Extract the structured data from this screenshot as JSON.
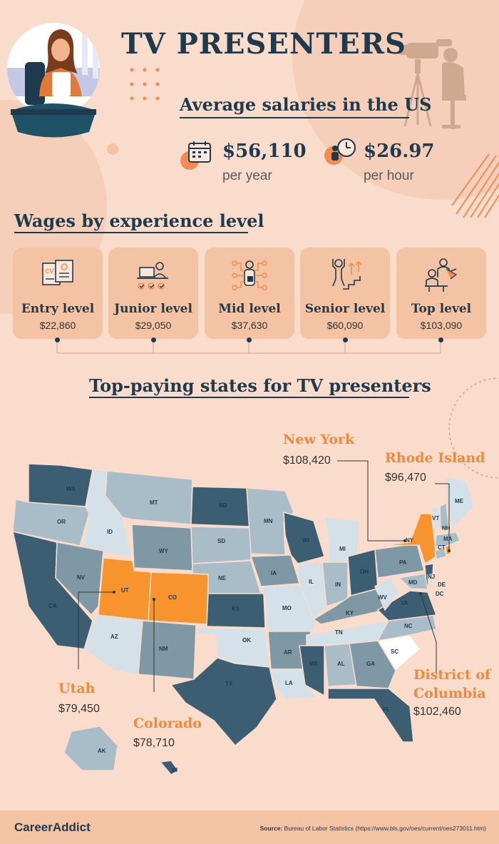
{
  "header": {
    "title": "TV PRESENTERS",
    "subtitle": "Average salaries in the US",
    "annual_salary": "$56,110",
    "annual_label": "per year",
    "hourly_salary": "$26.97",
    "hourly_label": "per hour"
  },
  "experience": {
    "heading": "Wages by experience level",
    "levels": [
      {
        "label": "Entry level",
        "salary": "$22,860",
        "icon": "cv-resume-icon"
      },
      {
        "label": "Junior level",
        "salary": "$29,050",
        "icon": "laptop-checklist-icon"
      },
      {
        "label": "Mid level",
        "salary": "$37,630",
        "icon": "network-person-icon"
      },
      {
        "label": "Senior level",
        "salary": "$60,090",
        "icon": "climbing-stairs-icon"
      },
      {
        "label": "Top level",
        "salary": "$103,090",
        "icon": "mentor-icon"
      }
    ]
  },
  "states": {
    "heading": "Top-paying states for TV presenters",
    "highlights": [
      {
        "name": "New York",
        "salary": "$108,420"
      },
      {
        "name": "Rhode Island",
        "salary": "$96,470"
      },
      {
        "name": "District of",
        "name2": "Columbia",
        "salary": "$102,460"
      },
      {
        "name": "Utah",
        "salary": "$79,450"
      },
      {
        "name": "Colorado",
        "salary": "$78,710"
      }
    ],
    "abbreviations": [
      "WA",
      "OR",
      "CA",
      "ID",
      "NV",
      "MT",
      "WY",
      "UT",
      "AZ",
      "CO",
      "NM",
      "ND",
      "SD",
      "NE",
      "KS",
      "OK",
      "TX",
      "MN",
      "IA",
      "MO",
      "AR",
      "LA",
      "WI",
      "IL",
      "MI",
      "IN",
      "OH",
      "KY",
      "TN",
      "MS",
      "AL",
      "GA",
      "FL",
      "SC",
      "NC",
      "VA",
      "WV",
      "PA",
      "NY",
      "MD",
      "DE",
      "DC",
      "NJ",
      "CT",
      "MA",
      "VT",
      "NH",
      "ME",
      "AK",
      "HI"
    ]
  },
  "colors": {
    "highlight": "#f7942d",
    "dark": "#3b5e72",
    "mid": "#7f98a6",
    "light": "#a9bdc8",
    "pale": "#d4e1e8"
  },
  "footer": {
    "logo": "CareerAddict",
    "source_label": "Source:",
    "source_text": "Bureau of Labor Statistics (https://www.bls.gov/oes/current/oes273011.htm)"
  }
}
